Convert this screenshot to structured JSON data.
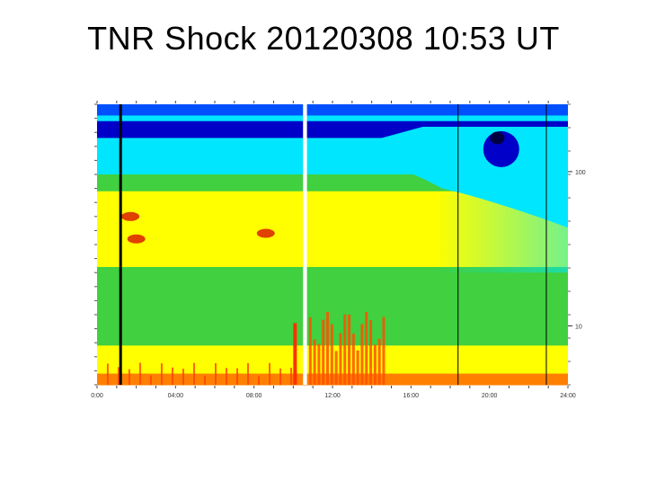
{
  "title": "TNR Shock 20120308 10:53 UT",
  "chart_data": {
    "type": "heatmap",
    "title": "TNR Shock 20120308 10:53 UT",
    "x_tick_labels": [
      "0:00",
      "04:00",
      "08:00",
      "12:00",
      "16:00",
      "20:00",
      "24:00"
    ],
    "x_range_hours": [
      0,
      24
    ],
    "y_scale": "log",
    "y_tick_labels": [
      "100",
      "10"
    ],
    "colormap": [
      "#0000c8",
      "#0050ff",
      "#00e6ff",
      "#40d040",
      "#ffff00",
      "#ff8000",
      "#e00000"
    ],
    "bands": [
      {
        "from": 0,
        "to": 0.04,
        "color": "#0050ff"
      },
      {
        "from": 0.04,
        "to": 0.06,
        "color": "#00e6ff"
      },
      {
        "from": 0.06,
        "to": 0.12,
        "color": "#0000c8"
      },
      {
        "from": 0.12,
        "to": 0.25,
        "color": "#00e6ff"
      },
      {
        "from": 0.25,
        "to": 0.31,
        "color": "#40d040"
      },
      {
        "from": 0.31,
        "to": 0.58,
        "color": "#ffff00"
      },
      {
        "from": 0.58,
        "to": 0.86,
        "color": "#40d040"
      },
      {
        "from": 0.86,
        "to": 0.96,
        "color": "#ffff00"
      },
      {
        "from": 0.96,
        "to": 1.0,
        "color": "#ff8000"
      }
    ],
    "data_gap_hours": [
      10.5,
      10.7
    ],
    "vertical_markers_hours": [
      1.2,
      18.4,
      22.9
    ]
  }
}
